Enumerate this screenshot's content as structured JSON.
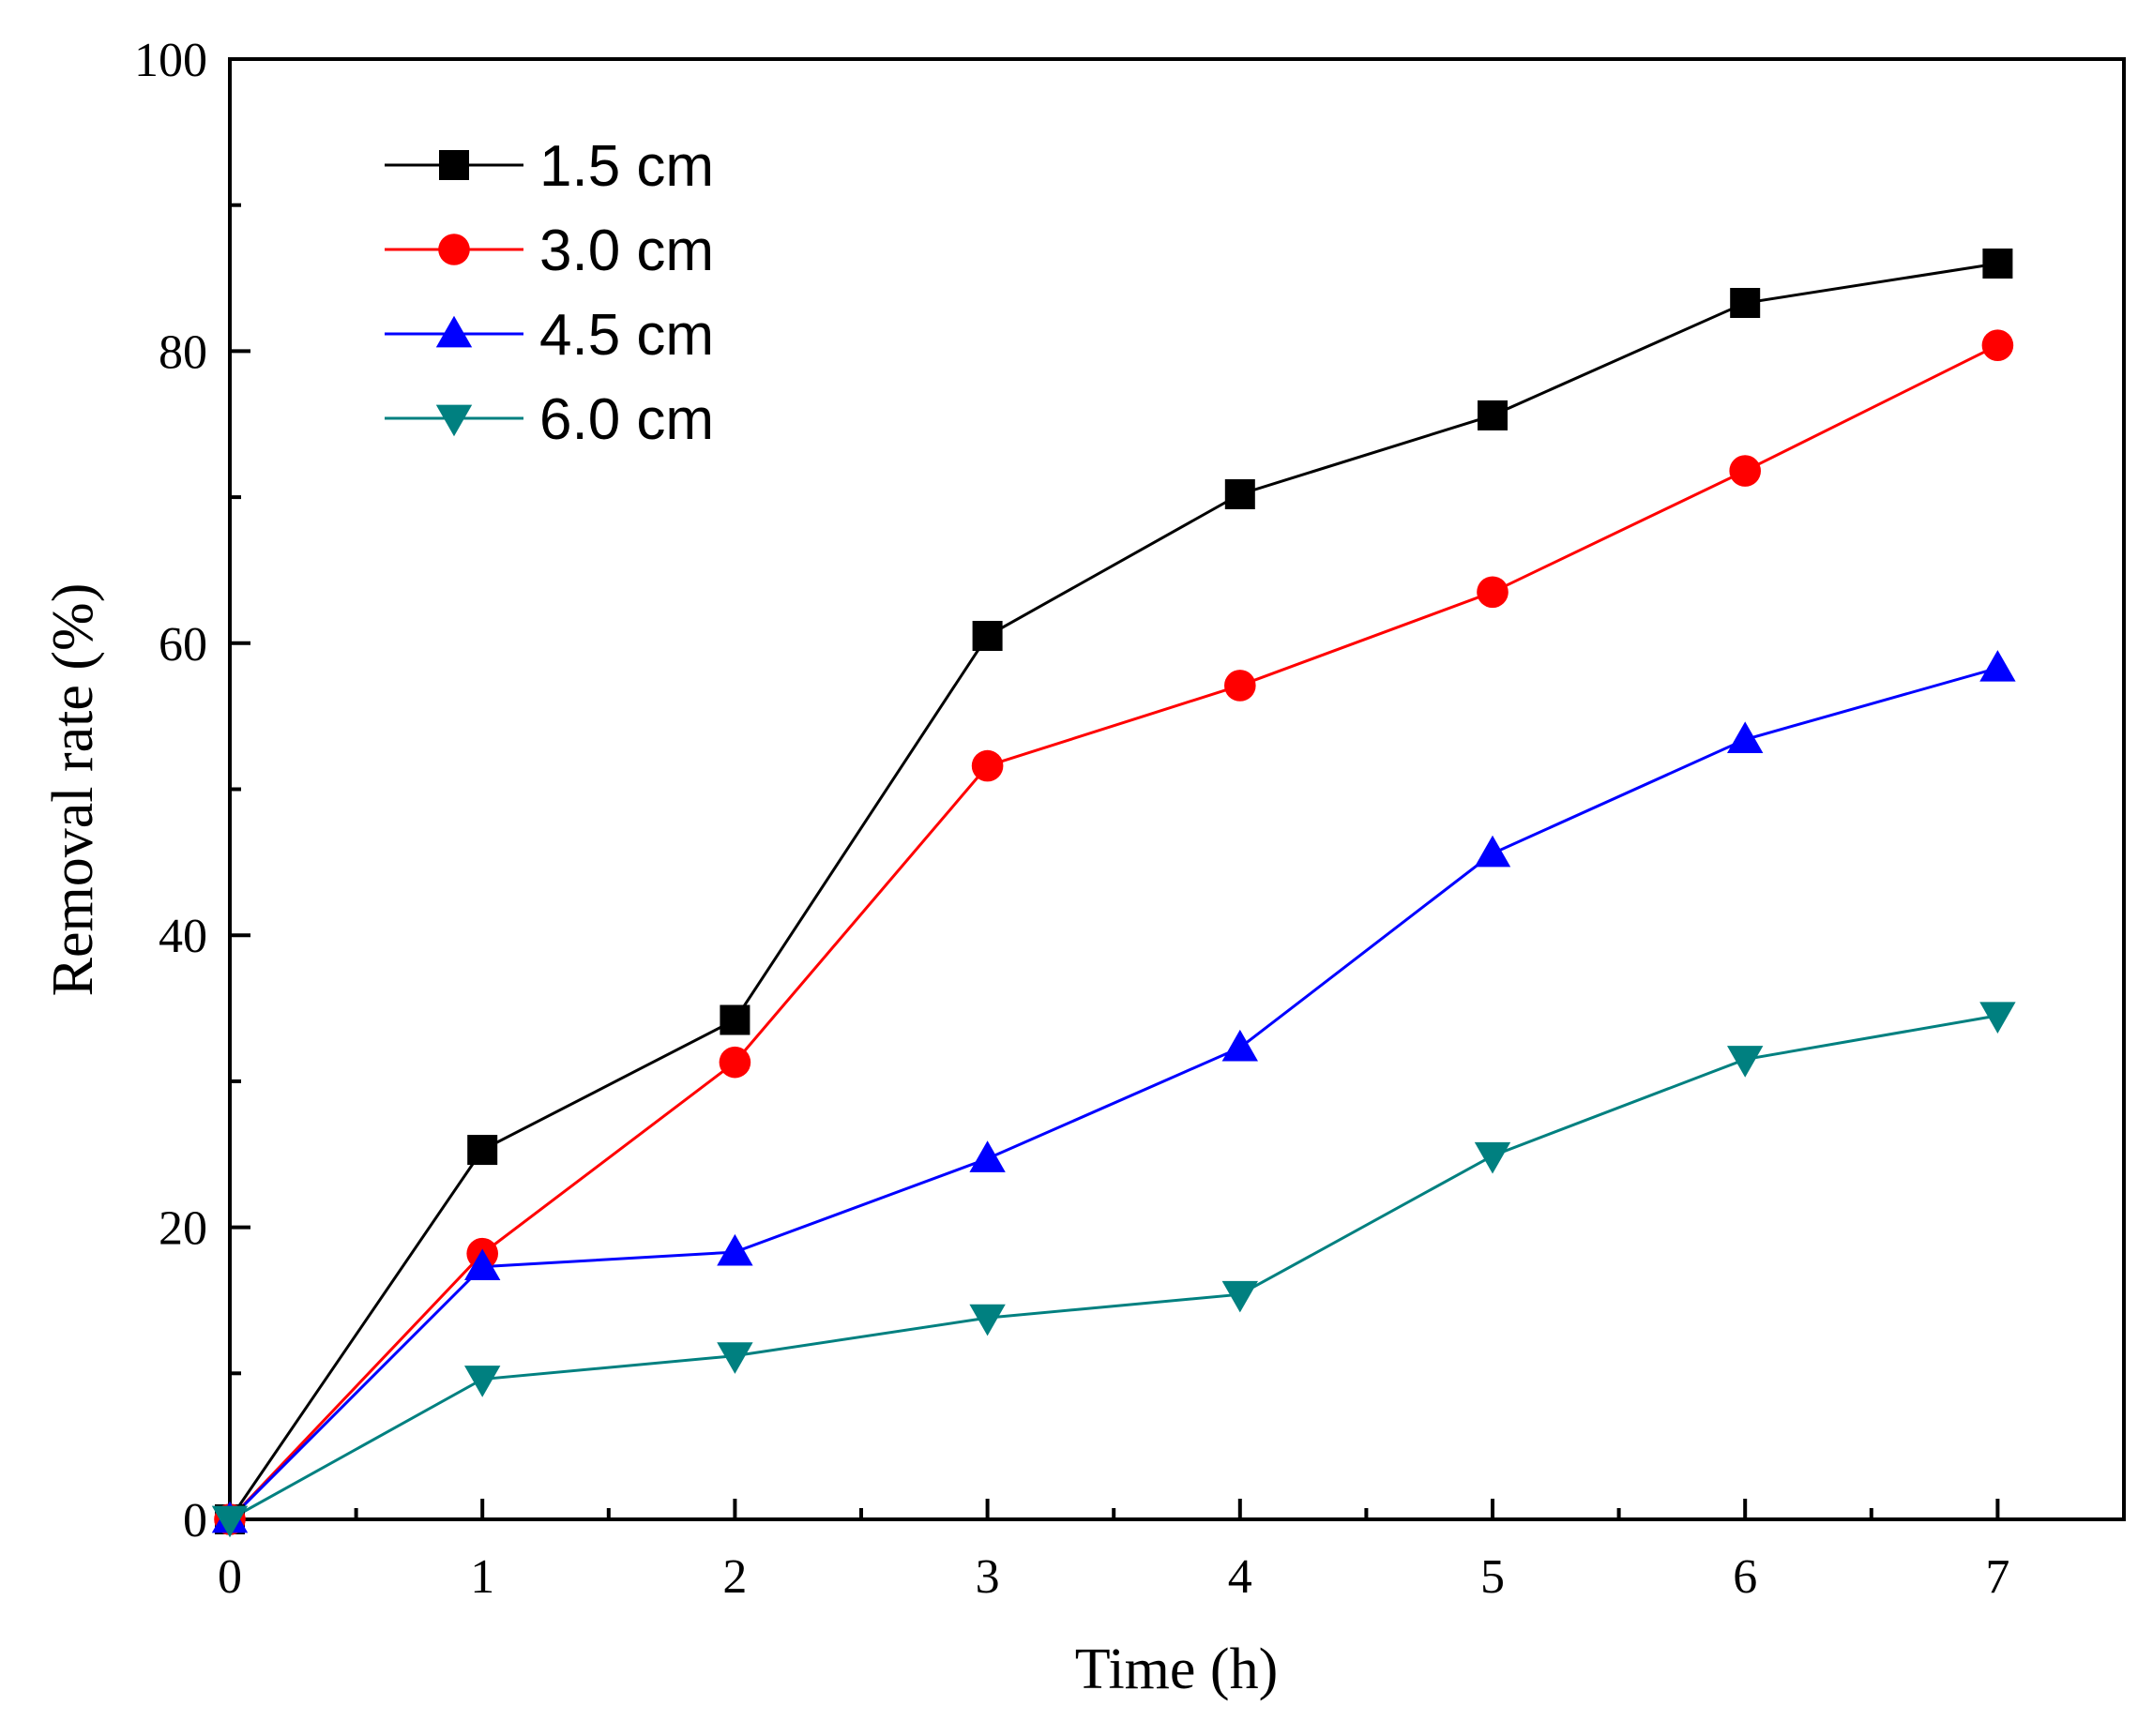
{
  "chart_data": {
    "type": "line",
    "title": "",
    "xlabel": "Time (h)",
    "ylabel": "Removal rate (%)",
    "xlim": [
      0,
      7.5
    ],
    "ylim": [
      0,
      100
    ],
    "x_ticks": [
      0,
      1,
      2,
      3,
      4,
      5,
      6,
      7
    ],
    "x_minor_ticks": [
      0.5,
      1.5,
      2.5,
      3.5,
      4.5,
      5.5,
      6.5,
      7.5
    ],
    "y_ticks": [
      0,
      20,
      40,
      60,
      80,
      100
    ],
    "y_minor_ticks": [
      10,
      30,
      50,
      70,
      90
    ],
    "x_tick_labels": [
      "0",
      "1",
      "2",
      "3",
      "4",
      "5",
      "6",
      "7"
    ],
    "y_tick_labels": [
      "0",
      "20",
      "40",
      "60",
      "80",
      "100"
    ],
    "grid": false,
    "legend_position": "top-left",
    "x": [
      0,
      1,
      2,
      3,
      4,
      5,
      6,
      7
    ],
    "series": [
      {
        "name": "1.5 cm",
        "color": "#000000",
        "marker": "square",
        "values": [
          0,
          25.3,
          34.2,
          60.5,
          70.2,
          75.6,
          83.3,
          86.0
        ]
      },
      {
        "name": "3.0 cm",
        "color": "#ff0000",
        "marker": "circle",
        "values": [
          0,
          18.2,
          31.3,
          51.6,
          57.1,
          63.5,
          71.8,
          80.4
        ]
      },
      {
        "name": "4.5 cm",
        "color": "#0000ff",
        "marker": "triangle-up",
        "values": [
          0,
          17.3,
          18.3,
          24.7,
          32.3,
          45.6,
          53.4,
          58.3
        ]
      },
      {
        "name": "6.0 cm",
        "color": "#008080",
        "marker": "triangle-down",
        "values": [
          0,
          9.6,
          11.2,
          13.8,
          15.4,
          24.9,
          31.5,
          34.5
        ]
      }
    ]
  }
}
